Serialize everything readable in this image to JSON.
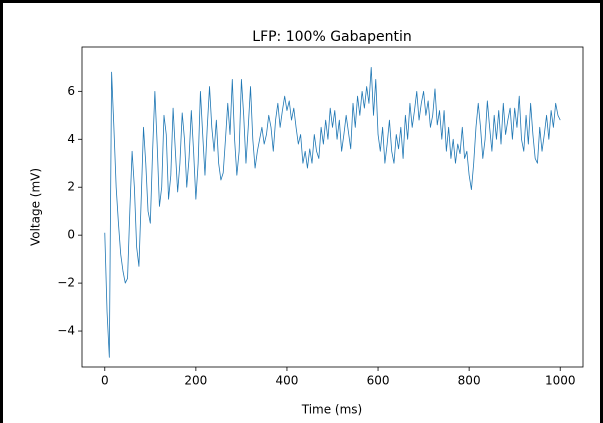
{
  "chart_data": {
    "type": "line",
    "title": "LFP: 100% Gabapentin",
    "x_label": "Time (ms)",
    "y_label": "Voltage (mV)",
    "color": "#1f77b4",
    "xlim": [
      -50,
      1050
    ],
    "xticks": [
      0,
      200,
      400,
      600,
      800,
      1000
    ],
    "ylim": [
      -5.5,
      7.85
    ],
    "yticks": [
      {
        "value": -4,
        "label": "−4"
      },
      {
        "value": -2,
        "label": "−2"
      },
      0,
      2,
      4,
      6
    ],
    "x": [
      0,
      5,
      10,
      15,
      20,
      25,
      30,
      35,
      40,
      45,
      50,
      55,
      60,
      65,
      70,
      75,
      80,
      85,
      90,
      95,
      100,
      105,
      110,
      115,
      120,
      125,
      130,
      135,
      140,
      145,
      150,
      155,
      160,
      165,
      170,
      175,
      180,
      185,
      190,
      195,
      200,
      205,
      210,
      215,
      220,
      225,
      230,
      235,
      240,
      245,
      250,
      255,
      260,
      265,
      270,
      275,
      280,
      285,
      290,
      295,
      300,
      305,
      310,
      315,
      320,
      325,
      330,
      335,
      340,
      345,
      350,
      355,
      360,
      365,
      370,
      375,
      380,
      385,
      390,
      395,
      400,
      405,
      410,
      415,
      420,
      425,
      430,
      435,
      440,
      445,
      450,
      455,
      460,
      465,
      470,
      475,
      480,
      485,
      490,
      495,
      500,
      505,
      510,
      515,
      520,
      525,
      530,
      535,
      540,
      545,
      550,
      555,
      560,
      565,
      570,
      575,
      580,
      585,
      590,
      595,
      600,
      605,
      610,
      615,
      620,
      625,
      630,
      635,
      640,
      645,
      650,
      655,
      660,
      665,
      670,
      675,
      680,
      685,
      690,
      695,
      700,
      705,
      710,
      715,
      720,
      725,
      730,
      735,
      740,
      745,
      750,
      755,
      760,
      765,
      770,
      775,
      780,
      785,
      790,
      795,
      800,
      805,
      810,
      815,
      820,
      825,
      830,
      835,
      840,
      845,
      850,
      855,
      860,
      865,
      870,
      875,
      880,
      885,
      890,
      895,
      900,
      905,
      910,
      915,
      920,
      925,
      930,
      935,
      940,
      945,
      950,
      955,
      960,
      965,
      970,
      975,
      980,
      985,
      990,
      995,
      1000
    ],
    "values": [
      0.1,
      -3.2,
      -5.1,
      6.8,
      4.5,
      2.0,
      0.5,
      -0.8,
      -1.5,
      -2.0,
      -1.8,
      1.0,
      3.5,
      2.0,
      -0.5,
      -1.3,
      1.5,
      4.5,
      3.0,
      1.0,
      0.5,
      3.5,
      6.0,
      3.8,
      1.2,
      2.0,
      5.0,
      4.2,
      1.5,
      2.5,
      5.3,
      3.5,
      1.8,
      3.0,
      5.1,
      4.0,
      2.0,
      3.2,
      5.2,
      3.5,
      1.5,
      3.0,
      6.0,
      4.2,
      2.5,
      4.5,
      6.2,
      4.5,
      3.5,
      4.8,
      3.0,
      2.3,
      2.6,
      4.0,
      5.5,
      4.2,
      6.5,
      4.0,
      2.5,
      3.5,
      6.5,
      5.0,
      3.0,
      4.5,
      6.2,
      4.0,
      2.8,
      3.5,
      4.0,
      4.5,
      3.8,
      4.2,
      5.0,
      4.5,
      3.5,
      4.8,
      5.5,
      4.5,
      5.2,
      5.8,
      5.2,
      5.6,
      4.8,
      5.3,
      4.5,
      3.8,
      4.2,
      3.0,
      3.5,
      2.8,
      3.6,
      3.0,
      4.2,
      3.5,
      3.2,
      4.5,
      3.8,
      4.8,
      4.0,
      5.3,
      4.5,
      5.2,
      4.0,
      4.8,
      3.5,
      4.2,
      5.0,
      4.3,
      3.6,
      5.5,
      4.5,
      5.8,
      5.0,
      6.0,
      5.3,
      6.2,
      5.5,
      7.0,
      5.0,
      6.5,
      4.2,
      3.5,
      4.5,
      3.0,
      3.8,
      4.8,
      3.5,
      3.0,
      4.2,
      3.6,
      4.5,
      3.2,
      5.0,
      4.0,
      5.5,
      4.5,
      5.2,
      6.0,
      4.8,
      5.5,
      6.0,
      5.0,
      5.6,
      4.5,
      5.0,
      6.1,
      4.6,
      5.2,
      4.0,
      5.2,
      3.5,
      4.5,
      3.2,
      4.0,
      3.0,
      3.8,
      3.4,
      4.5,
      3.2,
      3.5,
      2.5,
      1.9,
      3.0,
      4.5,
      5.5,
      4.5,
      3.2,
      4.0,
      5.6,
      4.5,
      3.5,
      5.0,
      4.0,
      5.2,
      3.8,
      5.5,
      4.2,
      4.8,
      5.3,
      4.0,
      5.3,
      4.5,
      5.8,
      4.0,
      3.5,
      5.0,
      3.8,
      5.5,
      4.2,
      3.2,
      3.0,
      4.5,
      3.5,
      4.2,
      5.0,
      4.0,
      5.2,
      4.5,
      5.5,
      5.0,
      4.8
    ]
  }
}
